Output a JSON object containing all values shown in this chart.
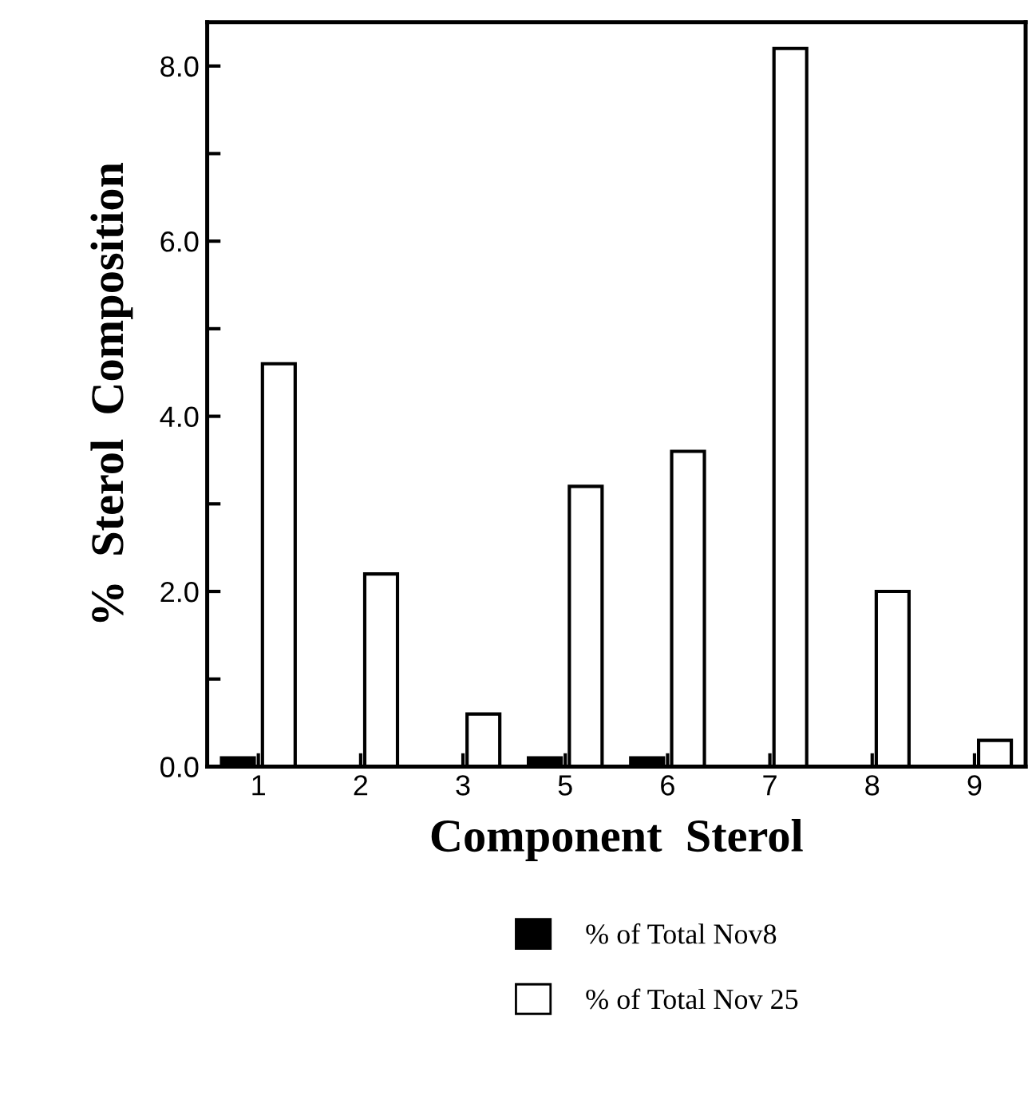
{
  "chart_data": {
    "type": "bar",
    "xlabel": "Component  Sterol",
    "ylabel": "%  Sterol  Composition",
    "categories": [
      "1",
      "2",
      "3",
      "5",
      "6",
      "7",
      "8",
      "9"
    ],
    "series": [
      {
        "name": "% of Total Nov8",
        "color": "#000000",
        "values": [
          0.1,
          0,
          0,
          0.1,
          0.1,
          0,
          0,
          0
        ]
      },
      {
        "name": "% of Total Nov 25",
        "color": "#ffffff",
        "values": [
          4.6,
          2.2,
          0.6,
          3.2,
          3.6,
          8.2,
          2.0,
          0.3
        ]
      }
    ],
    "ylim": [
      0,
      8.5
    ],
    "yticks": [
      {
        "value": 0,
        "label": "0.0"
      },
      {
        "value": 1,
        "label": null
      },
      {
        "value": 2,
        "label": "2.0"
      },
      {
        "value": 3,
        "label": null
      },
      {
        "value": 4,
        "label": "4.0"
      },
      {
        "value": 5,
        "label": null
      },
      {
        "value": 6,
        "label": "6.0"
      },
      {
        "value": 7,
        "label": null
      },
      {
        "value": 8,
        "label": "8.0"
      }
    ],
    "grid": false,
    "legend": "bottom"
  }
}
